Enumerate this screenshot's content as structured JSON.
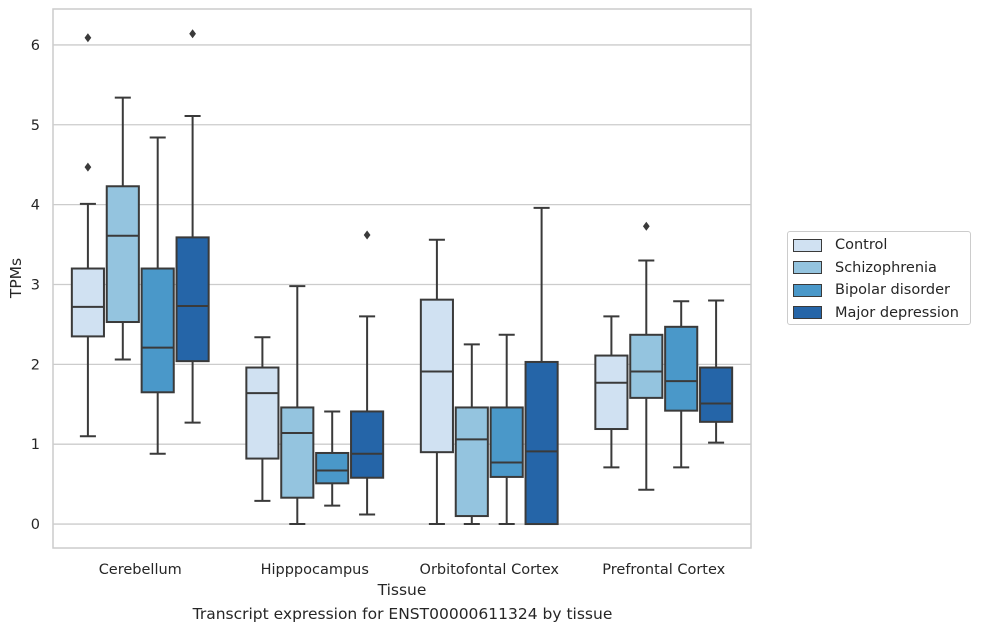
{
  "caption": "Transcript expression for ENST00000611324 by tissue",
  "chart_data": {
    "type": "box",
    "xlabel": "Tissue",
    "ylabel": "TPMs",
    "ylim": [
      -0.3,
      6.45
    ],
    "yticks": [
      0,
      1,
      2,
      3,
      4,
      5,
      6
    ],
    "grid": "horizontal",
    "legend_position": "right",
    "categories": [
      "Cerebellum",
      "Hipppocampus",
      "Orbitofontal Cortex",
      "Prefrontal Cortex"
    ],
    "series": [
      {
        "name": "Control",
        "color": "#d0e1f2",
        "boxes": [
          {
            "whislo": 1.1,
            "q1": 2.35,
            "med": 2.72,
            "q3": 3.2,
            "whishi": 4.01,
            "fliers": [
              4.47,
              6.09
            ]
          },
          {
            "whislo": 0.29,
            "q1": 0.82,
            "med": 1.64,
            "q3": 1.96,
            "whishi": 2.34,
            "fliers": []
          },
          {
            "whislo": 0.0,
            "q1": 0.9,
            "med": 1.91,
            "q3": 2.81,
            "whishi": 3.56,
            "fliers": []
          },
          {
            "whislo": 0.71,
            "q1": 1.19,
            "med": 1.77,
            "q3": 2.11,
            "whishi": 2.6,
            "fliers": []
          }
        ]
      },
      {
        "name": "Schizophrenia",
        "color": "#94c4df",
        "boxes": [
          {
            "whislo": 2.06,
            "q1": 2.53,
            "med": 3.61,
            "q3": 4.23,
            "whishi": 5.34,
            "fliers": []
          },
          {
            "whislo": 0.0,
            "q1": 0.33,
            "med": 1.14,
            "q3": 1.46,
            "whishi": 2.98,
            "fliers": []
          },
          {
            "whislo": 0.0,
            "q1": 0.1,
            "med": 1.06,
            "q3": 1.46,
            "whishi": 2.25,
            "fliers": []
          },
          {
            "whislo": 0.43,
            "q1": 1.58,
            "med": 1.91,
            "q3": 2.37,
            "whishi": 3.3,
            "fliers": [
              3.73
            ]
          }
        ]
      },
      {
        "name": "Bipolar disorder",
        "color": "#4a98c9",
        "boxes": [
          {
            "whislo": 0.88,
            "q1": 1.65,
            "med": 2.21,
            "q3": 3.2,
            "whishi": 4.84,
            "fliers": []
          },
          {
            "whislo": 0.23,
            "q1": 0.51,
            "med": 0.67,
            "q3": 0.89,
            "whishi": 1.41,
            "fliers": []
          },
          {
            "whislo": 0.0,
            "q1": 0.59,
            "med": 0.77,
            "q3": 1.46,
            "whishi": 2.37,
            "fliers": []
          },
          {
            "whislo": 0.71,
            "q1": 1.42,
            "med": 1.79,
            "q3": 2.47,
            "whishi": 2.79,
            "fliers": []
          }
        ]
      },
      {
        "name": "Major depression",
        "color": "#2565a8",
        "boxes": [
          {
            "whislo": 1.27,
            "q1": 2.04,
            "med": 2.73,
            "q3": 3.59,
            "whishi": 5.11,
            "fliers": [
              6.14
            ]
          },
          {
            "whislo": 0.12,
            "q1": 0.58,
            "med": 0.88,
            "q3": 1.41,
            "whishi": 2.6,
            "fliers": [
              3.62
            ]
          },
          {
            "whislo": 0.0,
            "q1": 0.0,
            "med": 0.91,
            "q3": 2.03,
            "whishi": 3.96,
            "fliers": []
          },
          {
            "whislo": 1.02,
            "q1": 1.28,
            "med": 1.51,
            "q3": 1.96,
            "whishi": 2.8,
            "fliers": []
          }
        ]
      }
    ]
  }
}
